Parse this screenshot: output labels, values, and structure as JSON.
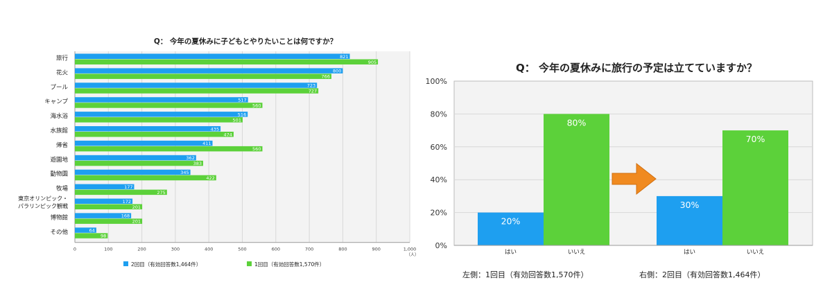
{
  "colors": {
    "blue": "#1e9ff0",
    "green": "#5cd13a",
    "arrow": "#f08a20",
    "panel": "#f3f3f3",
    "grid": "#d8d8d8"
  },
  "chart_data": [
    {
      "type": "bar",
      "orientation": "horizontal",
      "title": "Q： 今年の夏休みに子どもとやりたいことは何ですか？",
      "categories": [
        "旅行",
        "花火",
        "プール",
        "キャンプ",
        "海水浴",
        "水族館",
        "帰省",
        "遊園地",
        "動物園",
        "牧場",
        "東京オリンピック・パラリンピック観戦",
        "博物館",
        "その他"
      ],
      "category_lines": [
        [
          "旅行"
        ],
        [
          "花火"
        ],
        [
          "プール"
        ],
        [
          "キャンプ"
        ],
        [
          "海水浴"
        ],
        [
          "水族館"
        ],
        [
          "帰省"
        ],
        [
          "遊園地"
        ],
        [
          "動物園"
        ],
        [
          "牧場"
        ],
        [
          "東京オリンピック・",
          "パラリンピック観戦"
        ],
        [
          "博物館"
        ],
        [
          "その他"
        ]
      ],
      "series": [
        {
          "name": "2回目（有効回答数1,464件）",
          "values": [
            821,
            800,
            723,
            517,
            516,
            435,
            411,
            362,
            345,
            177,
            172,
            168,
            64
          ],
          "color": "#1e9ff0"
        },
        {
          "name": "1回目（有効回答数1,570件）",
          "values": [
            905,
            766,
            727,
            560,
            501,
            474,
            560,
            383,
            422,
            275,
            201,
            201,
            98
          ],
          "color": "#5cd13a"
        }
      ],
      "xlim": [
        0,
        1000
      ],
      "xticks": [
        "0",
        "100",
        "200",
        "300",
        "400",
        "500",
        "600",
        "700",
        "800",
        "900",
        "1,000"
      ],
      "unit": "（人）",
      "legend_position": "bottom",
      "grid": true
    },
    {
      "type": "bar",
      "title": "Q： 今年の夏休みに旅行の予定は立てていますか？",
      "groups": [
        {
          "caption": "左側：1回目（有効回答数1,570件）",
          "bars": [
            {
              "category": "はい",
              "value": 20,
              "label": "20%",
              "color": "#1e9ff0"
            },
            {
              "category": "いいえ",
              "value": 80,
              "label": "80%",
              "color": "#5cd13a"
            }
          ]
        },
        {
          "caption": "右側：2回目（有効回答数1,464件）",
          "bars": [
            {
              "category": "はい",
              "value": 30,
              "label": "30%",
              "color": "#1e9ff0"
            },
            {
              "category": "いいえ",
              "value": 70,
              "label": "70%",
              "color": "#5cd13a"
            }
          ]
        }
      ],
      "ylim": [
        0,
        100
      ],
      "yticks": [
        "0%",
        "20%",
        "40%",
        "60%",
        "80%",
        "100%"
      ],
      "arrow_icon": "right-arrow-icon",
      "grid": true
    }
  ]
}
